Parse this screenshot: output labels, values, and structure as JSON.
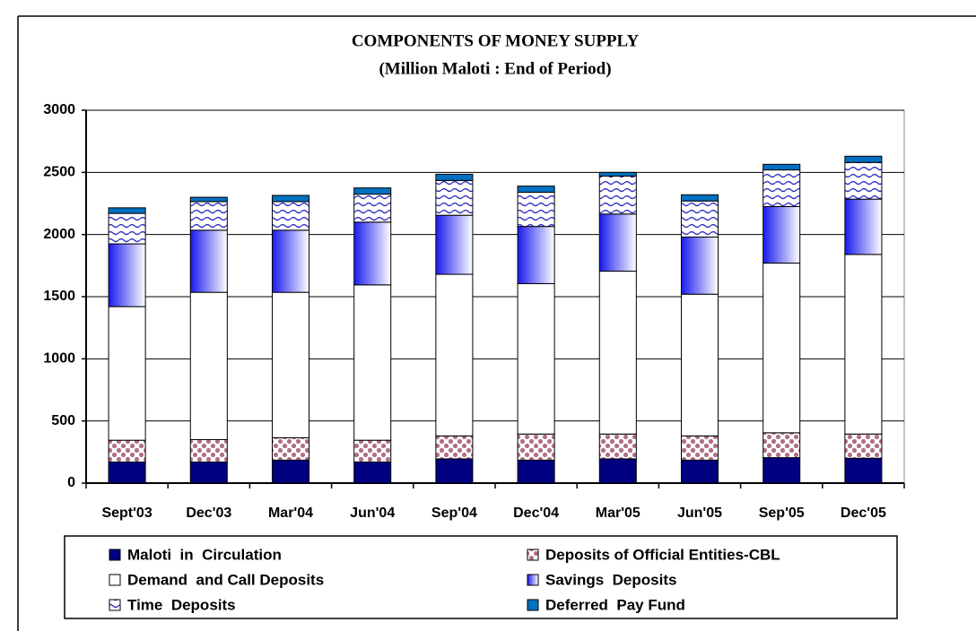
{
  "chart_data": {
    "type": "stacked_bar",
    "title": "COMPONENTS OF MONEY SUPPLY",
    "subtitle": "(Million Maloti : End of Period)",
    "categories": [
      "Sept'03",
      "Dec'03",
      "Mar'04",
      "Jun'04",
      "Sep'04",
      "Dec'04",
      "Mar'05",
      "Jun'05",
      "Sep'05",
      "Dec'05"
    ],
    "series": [
      {
        "name": "Maloti  in  Circulation",
        "color": "#000080",
        "values": [
          170,
          170,
          185,
          170,
          195,
          185,
          195,
          185,
          205,
          200
        ]
      },
      {
        "name": "Deposits of Official Entities-CBL",
        "color": "#b07088",
        "values": [
          175,
          180,
          180,
          175,
          185,
          210,
          200,
          195,
          200,
          195
        ]
      },
      {
        "name": "Demand  and Call Deposits",
        "color": "#ffffff",
        "values": [
          1075,
          1185,
          1170,
          1250,
          1300,
          1210,
          1310,
          1140,
          1365,
          1445
        ]
      },
      {
        "name": "Savings  Deposits",
        "color": "#1a1aee",
        "values": [
          505,
          500,
          500,
          505,
          475,
          460,
          460,
          460,
          455,
          445
        ]
      },
      {
        "name": "Time  Deposits",
        "color": "#3030c0",
        "values": [
          245,
          230,
          230,
          225,
          280,
          275,
          305,
          290,
          295,
          295
        ]
      },
      {
        "name": "Deferred  Pay Fund",
        "color": "#0070c0",
        "values": [
          45,
          35,
          50,
          50,
          50,
          50,
          30,
          50,
          45,
          50
        ]
      }
    ],
    "ylim": [
      0,
      3000
    ],
    "yticks": [
      0,
      500,
      1000,
      1500,
      2000,
      2500,
      3000
    ],
    "grid": true
  }
}
